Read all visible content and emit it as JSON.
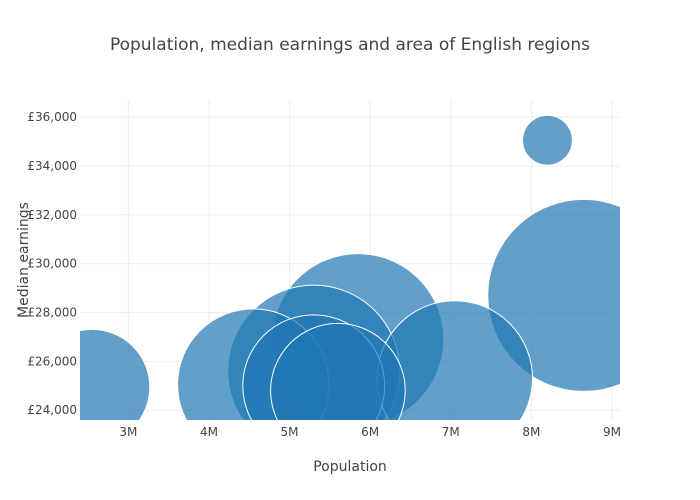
{
  "chart_data": {
    "type": "scatter",
    "title": "Population, median earnings and area of English regions",
    "xlabel": "Population",
    "ylabel": "Median earnings",
    "xlim": [
      2400000,
      9100000
    ],
    "ylim": [
      23600000,
      36700000
    ],
    "ylim_display": [
      23600,
      36700
    ],
    "x_ticks": [
      {
        "value": 3000000,
        "label": "3M"
      },
      {
        "value": 4000000,
        "label": "4M"
      },
      {
        "value": 5000000,
        "label": "5M"
      },
      {
        "value": 6000000,
        "label": "6M"
      },
      {
        "value": 7000000,
        "label": "7M"
      },
      {
        "value": 8000000,
        "label": "8M"
      },
      {
        "value": 9000000,
        "label": "9M"
      }
    ],
    "y_ticks": [
      {
        "value": 24000,
        "label": "£24,000"
      },
      {
        "value": 26000,
        "label": "£26,000"
      },
      {
        "value": 28000,
        "label": "£28,000"
      },
      {
        "value": 30000,
        "label": "£30,000"
      },
      {
        "value": 32000,
        "label": "£32,000"
      },
      {
        "value": 34000,
        "label": "£34,000"
      },
      {
        "value": 36000,
        "label": "£36,000"
      }
    ],
    "grid": true,
    "marker_color": "#1f77b4",
    "marker_opacity": 0.7,
    "marker_line_color": "#ffffff",
    "points": [
      {
        "x": 2550000,
        "y": 24950,
        "size": 8600
      },
      {
        "x": 8200000,
        "y": 35050,
        "size": 1600
      },
      {
        "x": 8650000,
        "y": 28700,
        "size": 23800
      },
      {
        "x": 5850000,
        "y": 26900,
        "size": 19000
      },
      {
        "x": 5300000,
        "y": 25600,
        "size": 19100
      },
      {
        "x": 4550000,
        "y": 25050,
        "size": 14800
      },
      {
        "x": 7050000,
        "y": 25300,
        "size": 15600
      },
      {
        "x": 5300000,
        "y": 25000,
        "size": 13000
      },
      {
        "x": 5600000,
        "y": 24800,
        "size": 11700
      }
    ]
  }
}
